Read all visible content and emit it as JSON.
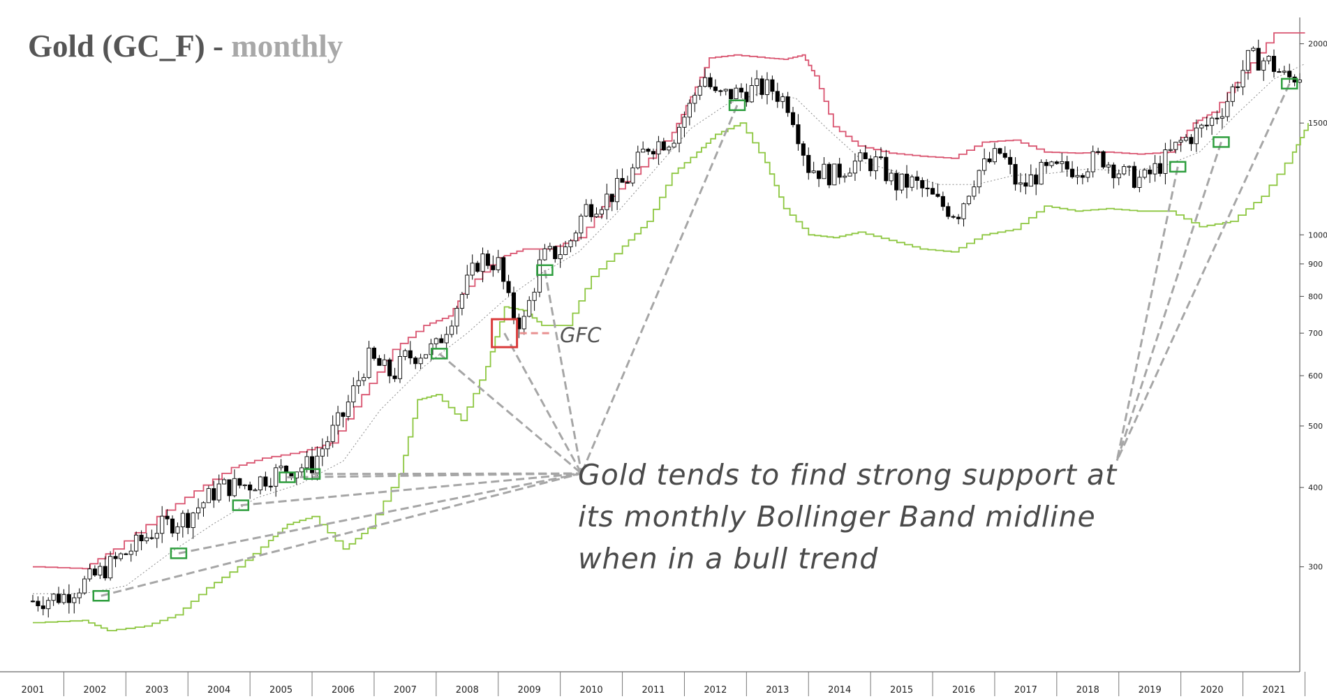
{
  "title": {
    "main": "Gold (GC_F) - ",
    "sub": "monthly"
  },
  "annotation": {
    "text_lines": [
      "Gold tends to find strong support at",
      "its monthly Bollinger Band midline",
      "when in a bull trend"
    ],
    "gfc_label": "GFC"
  },
  "colors": {
    "upper_band": "#d9536f",
    "lower_band": "#8cc63f",
    "midline": "#888888",
    "candle": "#000000",
    "support_marker": "#2e9e3e",
    "gfc_marker": "#d93a3a",
    "dashed_lines": "#a6a6a6"
  },
  "chart_data": {
    "type": "candlestick",
    "title": "Gold (GC_F) - monthly",
    "x_tick_labels": [
      "2001",
      "2002",
      "2003",
      "2004",
      "2005",
      "2006",
      "2007",
      "2008",
      "2009",
      "2010",
      "2011",
      "2012",
      "2013",
      "2014",
      "2015",
      "2016",
      "2017",
      "2018",
      "2019",
      "2020",
      "2021"
    ],
    "y_scale": "log",
    "y_tick_labels": [
      "300",
      "400",
      "500",
      "600",
      "700",
      "800",
      "900",
      "1000",
      "1500",
      "2000"
    ],
    "y_ticks": [
      300,
      400,
      500,
      600,
      700,
      800,
      900,
      1000,
      1500,
      2000
    ],
    "ylim": [
      205,
      2200
    ],
    "xlim": [
      2001.0,
      2021.6
    ],
    "close_series": {
      "x": [
        2001.0,
        2001.5,
        2002.0,
        2002.5,
        2003.0,
        2003.5,
        2004.0,
        2004.5,
        2005.0,
        2005.5,
        2006.0,
        2006.4,
        2006.8,
        2007.0,
        2007.5,
        2007.9,
        2008.2,
        2008.5,
        2008.7,
        2008.9,
        2009.2,
        2009.6,
        2009.9,
        2010.3,
        2010.6,
        2010.9,
        2011.3,
        2011.6,
        2011.8,
        2012.0,
        2012.3,
        2012.7,
        2012.9,
        2013.2,
        2013.5,
        2013.9,
        2014.2,
        2014.6,
        2014.9,
        2015.2,
        2015.6,
        2015.9,
        2016.2,
        2016.6,
        2016.9,
        2017.2,
        2017.6,
        2017.9,
        2018.2,
        2018.6,
        2018.9,
        2019.2,
        2019.5,
        2019.9,
        2020.2,
        2020.6,
        2020.9,
        2021.2,
        2021.5
      ],
      "values": [
        265,
        270,
        290,
        315,
        345,
        360,
        400,
        405,
        425,
        435,
        520,
        640,
        600,
        640,
        665,
        800,
        920,
        900,
        760,
        720,
        920,
        950,
        1100,
        1150,
        1230,
        1380,
        1420,
        1600,
        1800,
        1650,
        1670,
        1700,
        1700,
        1600,
        1280,
        1240,
        1300,
        1300,
        1200,
        1210,
        1120,
        1080,
        1250,
        1350,
        1180,
        1250,
        1270,
        1280,
        1330,
        1240,
        1220,
        1300,
        1400,
        1480,
        1600,
        1900,
        1880,
        1760,
        1800
      ]
    },
    "upper_band": {
      "x": [
        2001.0,
        2001.8,
        2002.3,
        2003.0,
        2003.6,
        2004.2,
        2004.7,
        2005.3,
        2005.8,
        2006.3,
        2006.8,
        2007.3,
        2007.7,
        2008.0,
        2008.5,
        2008.9,
        2009.3,
        2009.8,
        2010.3,
        2010.8,
        2011.3,
        2011.6,
        2011.9,
        2012.3,
        2012.8,
        2013.1,
        2013.4,
        2013.6,
        2013.9,
        2014.3,
        2014.8,
        2015.3,
        2015.8,
        2016.3,
        2016.8,
        2017.3,
        2017.8,
        2018.3,
        2018.8,
        2019.3,
        2019.7,
        2020.0,
        2020.5,
        2021.0,
        2021.5
      ],
      "values": [
        300,
        298,
        320,
        360,
        395,
        430,
        445,
        455,
        470,
        560,
        660,
        720,
        745,
        830,
        920,
        950,
        950,
        990,
        1150,
        1280,
        1450,
        1650,
        1900,
        1920,
        1900,
        1890,
        1920,
        1780,
        1480,
        1380,
        1345,
        1330,
        1320,
        1400,
        1410,
        1350,
        1345,
        1350,
        1340,
        1350,
        1500,
        1560,
        1800,
        2080,
        2080
      ]
    },
    "lower_band": {
      "x": [
        2001.0,
        2001.8,
        2002.2,
        2002.8,
        2003.3,
        2003.8,
        2004.3,
        2004.8,
        2005.1,
        2005.5,
        2006.0,
        2006.4,
        2006.9,
        2007.2,
        2007.5,
        2007.9,
        2008.3,
        2008.6,
        2008.9,
        2009.2,
        2009.6,
        2010.0,
        2010.5,
        2010.9,
        2011.3,
        2011.7,
        2012.0,
        2012.4,
        2012.8,
        2013.1,
        2013.5,
        2013.9,
        2014.3,
        2014.8,
        2015.3,
        2015.8,
        2016.3,
        2016.8,
        2017.3,
        2017.8,
        2018.3,
        2018.8,
        2019.3,
        2019.8,
        2020.3,
        2020.8,
        2021.3,
        2021.55
      ],
      "values": [
        245,
        247,
        238,
        242,
        252,
        278,
        300,
        330,
        350,
        360,
        320,
        345,
        420,
        550,
        560,
        510,
        620,
        770,
        760,
        720,
        720,
        860,
        960,
        1050,
        1250,
        1350,
        1440,
        1500,
        1300,
        1100,
        1000,
        990,
        1010,
        980,
        950,
        940,
        1000,
        1020,
        1110,
        1090,
        1100,
        1090,
        1090,
        1030,
        1050,
        1150,
        1350,
        1500
      ]
    },
    "midline": {
      "x": [
        2001.0,
        2001.8,
        2002.5,
        2003.2,
        2003.9,
        2004.6,
        2005.3,
        2006.0,
        2006.6,
        2007.3,
        2008.0,
        2008.6,
        2009.2,
        2009.8,
        2010.4,
        2011.0,
        2011.6,
        2012.2,
        2012.8,
        2013.3,
        2013.8,
        2014.4,
        2015.0,
        2015.6,
        2016.2,
        2016.8,
        2017.4,
        2018.0,
        2018.6,
        2019.2,
        2019.8,
        2020.4,
        2021.0,
        2021.5
      ],
      "values": [
        272,
        272,
        280,
        315,
        350,
        385,
        405,
        440,
        530,
        620,
        700,
        790,
        870,
        940,
        1080,
        1260,
        1470,
        1610,
        1680,
        1640,
        1470,
        1300,
        1250,
        1200,
        1200,
        1240,
        1250,
        1270,
        1260,
        1280,
        1350,
        1550,
        1760,
        1860
      ]
    },
    "support_markers": {
      "x": [
        2002.1,
        2003.35,
        2004.35,
        2005.1,
        2005.5,
        2007.55,
        2009.25,
        2012.35,
        2019.45,
        2020.15,
        2021.25
      ],
      "values": [
        270,
        315,
        375,
        415,
        420,
        650,
        880,
        1600,
        1280,
        1400,
        1730
      ]
    },
    "gfc_marker": {
      "x": 2008.6,
      "values": [
        700
      ]
    }
  }
}
